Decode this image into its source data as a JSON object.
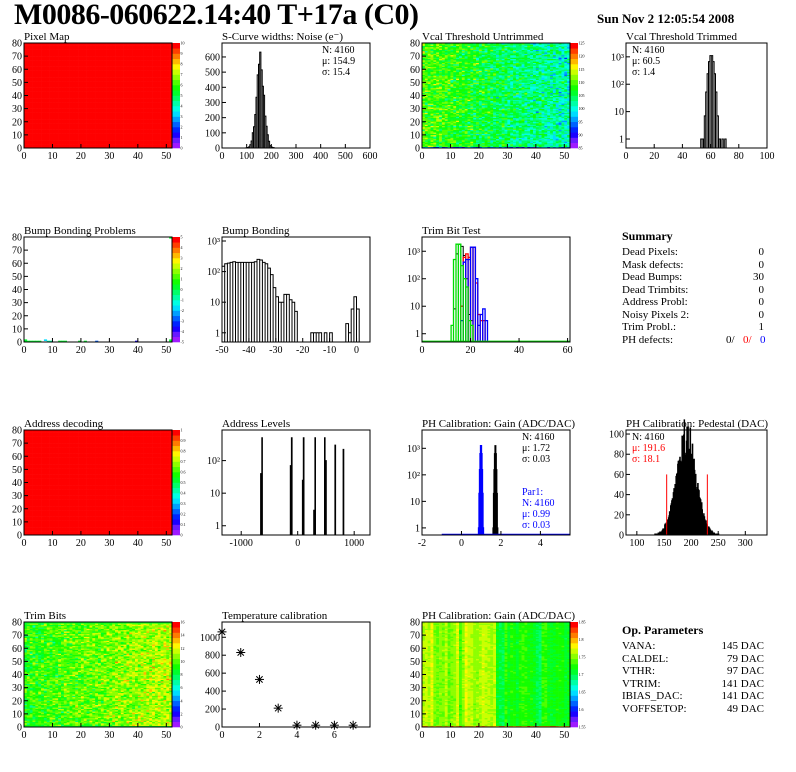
{
  "header": {
    "title": "M0086-060622.14:40 T+17a (C0)",
    "date": "Sun Nov  2 12:05:54 2008"
  },
  "colors": {
    "red": "#ff0000",
    "blue": "#0000ff",
    "green": "#00dd00",
    "black": "#000000"
  },
  "summary": {
    "title": "Summary",
    "rows": [
      {
        "label": "Dead Pixels:",
        "value": "0"
      },
      {
        "label": "Mask defects:",
        "value": "0"
      },
      {
        "label": "Dead Bumps:",
        "value": "30"
      },
      {
        "label": "Dead Trimbits:",
        "value": "0"
      },
      {
        "label": "Address Probl:",
        "value": "0"
      },
      {
        "label": "Noisy Pixels 2:",
        "value": "0"
      },
      {
        "label": "Trim Probl.:",
        "value": "1"
      }
    ],
    "ph_defects": {
      "label": "PH defects:",
      "v1": "0/",
      "v2": "0/",
      "v3": "0"
    }
  },
  "op_parameters": {
    "title": "Op. Parameters",
    "rows": [
      {
        "label": "VANA:",
        "value": "145 DAC"
      },
      {
        "label": "CALDEL:",
        "value": "79 DAC"
      },
      {
        "label": "VTHR:",
        "value": "97 DAC"
      },
      {
        "label": "VTRIM:",
        "value": "141 DAC"
      },
      {
        "label": "IBIAS_DAC:",
        "value": "141 DAC"
      },
      {
        "label": "VOFFSETOP:",
        "value": "49 DAC"
      }
    ]
  },
  "chart_data": [
    {
      "id": "pixel-map",
      "type": "heatmap",
      "title": "Pixel Map",
      "xlim": [
        0,
        52
      ],
      "ylim": [
        0,
        80
      ],
      "zlim": [
        0,
        10
      ],
      "xticks": [
        "0",
        "10",
        "20",
        "30",
        "40",
        "50"
      ],
      "yticks": [
        "0",
        "10",
        "20",
        "30",
        "40",
        "50",
        "60",
        "70",
        "80"
      ],
      "zticks": [
        "0",
        "1",
        "2",
        "3",
        "4",
        "5",
        "6",
        "7",
        "8",
        "9",
        "10"
      ],
      "pattern": "uniform",
      "value": 10
    },
    {
      "id": "s-curve-widths",
      "type": "bar",
      "title": "S-Curve widths: Noise (e⁻)",
      "xlim": [
        0,
        600
      ],
      "ylim": [
        0,
        692
      ],
      "log": false,
      "xticks": [
        "0",
        "100",
        "200",
        "300",
        "400",
        "500",
        "600"
      ],
      "yticks": [
        "0",
        "100",
        "200",
        "300",
        "400",
        "500",
        "600"
      ],
      "stats": [
        {
          "text": "N: 4160"
        },
        {
          "text": "μ: 154.9"
        },
        {
          "text": "σ: 15.4"
        }
      ],
      "series": [
        {
          "gauss": {
            "N": 4160,
            "mean": 154.9,
            "sigma": 15.4,
            "binw": 5
          },
          "color": "#000000"
        }
      ]
    },
    {
      "id": "vcal-threshold-untrimmed",
      "type": "heatmap",
      "title": "Vcal Threshold Untrimmed",
      "xlim": [
        0,
        52
      ],
      "ylim": [
        0,
        80
      ],
      "zlim": [
        85,
        130
      ],
      "xticks": [
        "0",
        "10",
        "20",
        "30",
        "40",
        "50"
      ],
      "yticks": [
        "0",
        "10",
        "20",
        "30",
        "40",
        "50",
        "60",
        "70",
        "80"
      ],
      "zticks": [
        "85",
        "90",
        "95",
        "100",
        "105",
        "110",
        "115",
        "120",
        "125"
      ],
      "pattern": "vcal"
    },
    {
      "id": "vcal-threshold-trimmed",
      "type": "bar",
      "title": "Vcal Threshold Trimmed",
      "xlim": [
        0,
        100
      ],
      "ylim": [
        0.47,
        3200
      ],
      "log": true,
      "xticks": [
        "0",
        "20",
        "40",
        "60",
        "80",
        "100"
      ],
      "yticks": [
        "1",
        "10",
        "10²",
        "10³"
      ],
      "stats": [
        {
          "text": "N: 4160"
        },
        {
          "text": "μ: 60.5"
        },
        {
          "text": "σ:  1.4"
        }
      ],
      "series": [
        {
          "gauss": {
            "N": 4160,
            "mean": 60.5,
            "sigma": 1.4,
            "binw": 1
          },
          "extra": [
            [
              53,
              1
            ],
            [
              54,
              1
            ],
            [
              66,
              1
            ],
            [
              68,
              1
            ],
            [
              70,
              1
            ]
          ],
          "color": "#000000"
        }
      ]
    },
    {
      "id": "bump-bonding-problems",
      "type": "heatmap",
      "title": "Bump Bonding Problems",
      "xlim": [
        0,
        52
      ],
      "ylim": [
        0,
        80
      ],
      "zlim": [
        -5,
        5
      ],
      "xticks": [
        "0",
        "10",
        "20",
        "30",
        "40",
        "50"
      ],
      "yticks": [
        "0",
        "10",
        "20",
        "30",
        "40",
        "50",
        "60",
        "70",
        "80"
      ],
      "zticks": [
        "-5",
        "-4",
        "-3",
        "-2",
        "-1",
        "0",
        "1",
        "2",
        "3",
        "4",
        "5"
      ],
      "pattern": "sparse",
      "cells": [
        [
          0,
          1,
          0.5
        ],
        [
          0,
          0,
          0.5
        ],
        [
          1,
          0,
          0.5
        ],
        [
          2,
          0,
          0.5
        ],
        [
          3,
          0,
          0.5
        ],
        [
          4,
          0,
          0.5
        ],
        [
          5,
          0,
          0.5
        ],
        [
          7,
          1,
          -2
        ],
        [
          8,
          0,
          -1
        ],
        [
          9,
          0,
          -1
        ],
        [
          12,
          0,
          0.5
        ],
        [
          13,
          0,
          0.5
        ],
        [
          14,
          0,
          0.5
        ],
        [
          19,
          0,
          0.5
        ],
        [
          21,
          0,
          0.5
        ],
        [
          25,
          0,
          -3
        ],
        [
          39,
          0,
          -4
        ],
        [
          51,
          0,
          0.5
        ],
        [
          51,
          1,
          0.5
        ],
        [
          51,
          79,
          0.5
        ]
      ]
    },
    {
      "id": "bump-bonding",
      "type": "bar",
      "title": "Bump Bonding",
      "xlim": [
        -50,
        5
      ],
      "ylim": [
        0.5,
        1350
      ],
      "log": true,
      "xticks": [
        "-50",
        "-40",
        "-30",
        "-20",
        "-10",
        "0"
      ],
      "yticks": [
        "1",
        "10",
        "10²",
        "10³"
      ],
      "series": [
        {
          "x0": -50,
          "binw": 1,
          "counts": [
            150,
            180,
            190,
            200,
            210,
            200,
            200,
            200,
            200,
            200,
            200,
            200,
            210,
            250,
            240,
            200,
            180,
            130,
            80,
            30,
            15,
            10,
            10,
            18,
            18,
            12,
            10,
            5,
            0,
            0,
            0,
            0,
            0,
            1,
            1,
            1,
            1,
            0,
            1,
            0,
            1,
            0,
            0,
            0,
            0,
            0,
            2,
            1,
            6,
            15,
            6
          ],
          "color": "#000000"
        }
      ]
    },
    {
      "id": "trim-bit-test",
      "type": "bar",
      "title": "Trim Bit Test",
      "xlim": [
        0,
        61
      ],
      "ylim": [
        0.5,
        3300
      ],
      "log": true,
      "xticks": [
        "0",
        "20",
        "40",
        "60"
      ],
      "yticks": [
        "1",
        "10",
        "10²",
        "10³"
      ],
      "series": [
        {
          "x0": 13,
          "binw": 1,
          "counts": [
            8,
            800,
            1800,
            1500,
            700,
            100,
            5,
            3
          ],
          "color": "#000000"
        },
        {
          "x0": 16,
          "binw": 1,
          "counts": [
            10,
            600,
            800,
            600,
            1400,
            1400,
            70,
            5,
            3,
            3
          ],
          "color": "#ff0000"
        },
        {
          "x0": 16,
          "binw": 1,
          "counts": [
            3,
            400,
            500,
            500,
            1400,
            1400,
            100,
            2,
            5,
            8,
            3
          ],
          "color": "#0000ff"
        },
        {
          "x0": 12,
          "binw": 1,
          "counts": [
            2,
            500,
            1800,
            1800,
            300,
            100,
            50,
            3,
            2
          ],
          "color": "#00dd00",
          "baseline": true
        }
      ]
    },
    {
      "id": "summary",
      "type": "table",
      "title": "Summary"
    },
    {
      "id": "address-decoding",
      "type": "heatmap",
      "title": "Address decoding",
      "xlim": [
        0,
        52
      ],
      "ylim": [
        0,
        80
      ],
      "zlim": [
        0,
        1
      ],
      "xticks": [
        "0",
        "10",
        "20",
        "30",
        "40",
        "50"
      ],
      "yticks": [
        "0",
        "10",
        "20",
        "30",
        "40",
        "50",
        "60",
        "70",
        "80"
      ],
      "zticks": [
        "0",
        "0.1",
        "0.2",
        "0.3",
        "0.4",
        "0.5",
        "0.6",
        "0.7",
        "0.8",
        "0.9",
        "1"
      ],
      "pattern": "uniform",
      "value": 1
    },
    {
      "id": "address-levels",
      "type": "bar",
      "title": "Address Levels",
      "xlim": [
        -1340,
        1280
      ],
      "ylim": [
        0.52,
        870
      ],
      "log": true,
      "xticks": [
        "-1000",
        "0",
        "1000"
      ],
      "yticks": [
        "1",
        "10",
        "10²"
      ],
      "series": [
        {
          "spikes": [
            [
              -650,
              40
            ],
            [
              -630,
              500
            ],
            [
              -125,
              70
            ],
            [
              -105,
              500
            ],
            [
              90,
              25
            ],
            [
              105,
              500
            ],
            [
              290,
              3
            ],
            [
              310,
              500
            ],
            [
              480,
              500
            ],
            [
              500,
              100
            ],
            [
              665,
              300
            ],
            [
              810,
              220
            ]
          ],
          "binw": 12,
          "color": "#000000"
        }
      ]
    },
    {
      "id": "ph-calibration-gain-hist",
      "type": "bar",
      "title": "PH Calibration: Gain (ADC/DAC)",
      "xlim": [
        -2,
        5.5
      ],
      "ylim": [
        0.54,
        4900
      ],
      "log": true,
      "xticks": [
        "-2",
        "0",
        "2",
        "4"
      ],
      "yticks": [
        "1",
        "10",
        "10²",
        "10³"
      ],
      "stats": [
        {
          "text": "N: 4160"
        },
        {
          "text": "μ: 1.72"
        },
        {
          "text": "σ: 0.03"
        }
      ],
      "stats2": [
        {
          "text": "Par1:"
        },
        {
          "text": "N: 4160"
        },
        {
          "text": "μ: 0.99"
        },
        {
          "text": "σ: 0.03"
        }
      ],
      "series": [
        {
          "gauss": {
            "N": 4160,
            "mean": 1.72,
            "sigma": 0.03,
            "binw": 0.025
          },
          "color": "#000000"
        },
        {
          "gauss": {
            "N": 4160,
            "mean": 0.99,
            "sigma": 0.03,
            "binw": 0.025
          },
          "color": "#0000ff",
          "baseline_from": -1
        }
      ]
    },
    {
      "id": "ph-calibration-pedestal",
      "type": "bar",
      "title": "PH Calibration: Pedestal (DAC)",
      "xlim": [
        80,
        340
      ],
      "ylim": [
        0,
        104
      ],
      "log": false,
      "xticks": [
        "100",
        "150",
        "200",
        "250",
        "300"
      ],
      "yticks": [
        "0",
        "20",
        "40",
        "60",
        "80",
        "100"
      ],
      "stats": [
        {
          "text": "N: 4160",
          "color": "#000000"
        },
        {
          "text": "μ: 191.6",
          "color": "#ff0000"
        },
        {
          "text": "σ: 18.1",
          "color": "#ff0000"
        }
      ],
      "series": [
        {
          "gauss": {
            "N": 4160,
            "mean": 191.6,
            "sigma": 18.1,
            "binw": 1
          },
          "color": "#000000",
          "fill": "#ff0000"
        }
      ],
      "cut_lines": [
        [
          155,
          60
        ],
        [
          230,
          60
        ]
      ]
    },
    {
      "id": "trim-bits",
      "type": "heatmap",
      "title": "Trim Bits",
      "xlim": [
        0,
        52
      ],
      "ylim": [
        0,
        80
      ],
      "zlim": [
        0,
        16
      ],
      "xticks": [
        "0",
        "10",
        "20",
        "30",
        "40",
        "50"
      ],
      "yticks": [
        "0",
        "10",
        "20",
        "30",
        "40",
        "50",
        "60",
        "70",
        "80"
      ],
      "zticks": [
        "0",
        "2",
        "4",
        "6",
        "8",
        "10",
        "12",
        "14",
        "16"
      ],
      "pattern": "trim"
    },
    {
      "id": "temperature-calibration",
      "type": "scatter",
      "title": "Temperature calibration",
      "xlim": [
        0,
        7.9
      ],
      "ylim": [
        0,
        1170
      ],
      "xticks": [
        "0",
        "2",
        "4",
        "6"
      ],
      "yticks": [
        "0",
        "200",
        "400",
        "600",
        "800",
        "1000"
      ],
      "points": [
        [
          0,
          1060
        ],
        [
          1,
          830
        ],
        [
          2,
          530
        ],
        [
          3,
          210
        ],
        [
          4,
          20
        ],
        [
          5,
          20
        ],
        [
          6,
          20
        ],
        [
          7,
          20
        ]
      ]
    },
    {
      "id": "ph-calibration-gain-map",
      "type": "heatmap",
      "title": "PH Calibration: Gain (ADC/DAC)",
      "xlim": [
        0,
        52
      ],
      "ylim": [
        0,
        80
      ],
      "zlim": [
        1.55,
        1.87
      ],
      "xticks": [
        "0",
        "10",
        "20",
        "30",
        "40",
        "50"
      ],
      "yticks": [
        "0",
        "10",
        "20",
        "30",
        "40",
        "50",
        "60",
        "70",
        "80"
      ],
      "zticks": [
        "1.55",
        "1.6",
        "1.65",
        "1.7",
        "1.75",
        "1.8",
        "1.85"
      ],
      "pattern": "gain"
    },
    {
      "id": "op-parameters",
      "type": "table",
      "title": "Op. Parameters"
    }
  ]
}
